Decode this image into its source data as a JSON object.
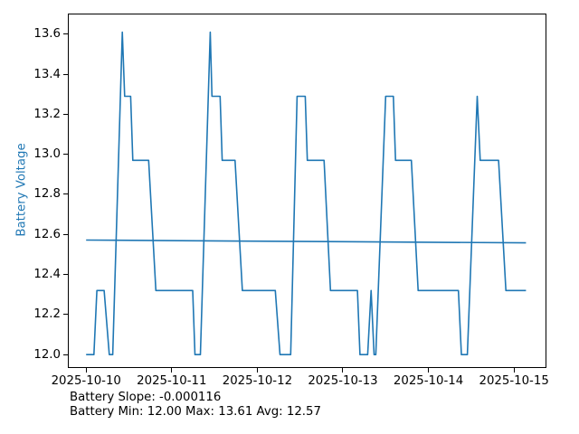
{
  "chart_data": {
    "type": "line",
    "title": "",
    "xlabel": "",
    "ylabel": "Battery Voltage",
    "ylabel_color": "#1f77b4",
    "line_color": "#1f77b4",
    "x_unit": "days since 2025-10-10 00:00",
    "xlim": [
      -0.214,
      5.379
    ],
    "ylim": [
      11.933,
      13.703
    ],
    "grid": false,
    "legend": "none",
    "xticks": [
      {
        "t": 0,
        "label": "2025-10-10"
      },
      {
        "t": 1,
        "label": "2025-10-11"
      },
      {
        "t": 2,
        "label": "2025-10-12"
      },
      {
        "t": 3,
        "label": "2025-10-13"
      },
      {
        "t": 4,
        "label": "2025-10-14"
      },
      {
        "t": 5,
        "label": "2025-10-15"
      }
    ],
    "yticks": [
      {
        "v": 12.0,
        "label": "12.0"
      },
      {
        "v": 12.2,
        "label": "12.2"
      },
      {
        "v": 12.4,
        "label": "12.4"
      },
      {
        "v": 12.6,
        "label": "12.6"
      },
      {
        "v": 12.8,
        "label": "12.8"
      },
      {
        "v": 13.0,
        "label": "13.0"
      },
      {
        "v": 13.2,
        "label": "13.2"
      },
      {
        "v": 13.4,
        "label": "13.4"
      },
      {
        "v": 13.6,
        "label": "13.6"
      }
    ],
    "series": [
      {
        "name": "Battery Voltage",
        "color": "#1f77b4",
        "width": 1.6,
        "points": [
          [
            0.0,
            12.0
          ],
          [
            0.09,
            12.0
          ],
          [
            0.125,
            12.32
          ],
          [
            0.21,
            12.32
          ],
          [
            0.27,
            12.0
          ],
          [
            0.31,
            12.0
          ],
          [
            0.423,
            13.61
          ],
          [
            0.45,
            13.29
          ],
          [
            0.52,
            13.29
          ],
          [
            0.545,
            12.97
          ],
          [
            0.73,
            12.97
          ],
          [
            0.815,
            12.32
          ],
          [
            1.245,
            12.32
          ],
          [
            1.272,
            12.0
          ],
          [
            1.335,
            12.0
          ],
          [
            1.45,
            13.61
          ],
          [
            1.47,
            13.29
          ],
          [
            1.565,
            13.29
          ],
          [
            1.59,
            12.97
          ],
          [
            1.74,
            12.97
          ],
          [
            1.825,
            12.32
          ],
          [
            2.21,
            12.32
          ],
          [
            2.265,
            12.0
          ],
          [
            2.39,
            12.0
          ],
          [
            2.465,
            13.29
          ],
          [
            2.56,
            13.29
          ],
          [
            2.585,
            12.97
          ],
          [
            2.78,
            12.97
          ],
          [
            2.855,
            12.32
          ],
          [
            3.17,
            12.32
          ],
          [
            3.2,
            12.0
          ],
          [
            3.29,
            12.0
          ],
          [
            3.33,
            12.32
          ],
          [
            3.365,
            12.0
          ],
          [
            3.385,
            12.0
          ],
          [
            3.5,
            13.29
          ],
          [
            3.59,
            13.29
          ],
          [
            3.615,
            12.97
          ],
          [
            3.8,
            12.97
          ],
          [
            3.88,
            12.32
          ],
          [
            4.35,
            12.32
          ],
          [
            4.385,
            12.0
          ],
          [
            4.455,
            12.0
          ],
          [
            4.57,
            13.29
          ],
          [
            4.605,
            12.97
          ],
          [
            4.82,
            12.97
          ],
          [
            4.905,
            12.32
          ],
          [
            5.14,
            12.32
          ]
        ]
      },
      {
        "name": "Trend",
        "color": "#1f77b4",
        "width": 1.6,
        "points": [
          [
            0.0,
            12.572
          ],
          [
            5.14,
            12.558
          ]
        ]
      }
    ],
    "stats": {
      "min": 12.0,
      "max": 13.61,
      "avg": 12.57,
      "slope": -0.000116
    }
  },
  "annotations": {
    "slope": "Battery Slope: -0.000116",
    "minmaxavg": "Battery Min: 12.00 Max: 13.61 Avg: 12.57"
  }
}
